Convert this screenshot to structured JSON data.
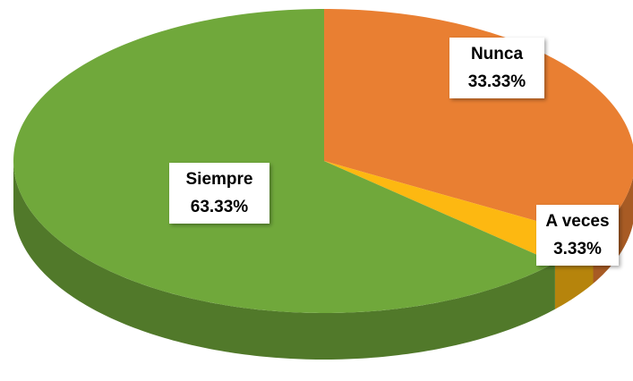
{
  "chart_data": {
    "type": "pie",
    "categories": [
      "Nunca",
      "A veces",
      "Siempre"
    ],
    "values": [
      33.33,
      3.33,
      63.33
    ],
    "value_labels": [
      "33.33%",
      "3.33%",
      "63.33%"
    ],
    "colors": [
      "#e97f32",
      "#fdb811",
      "#70a83b"
    ]
  }
}
